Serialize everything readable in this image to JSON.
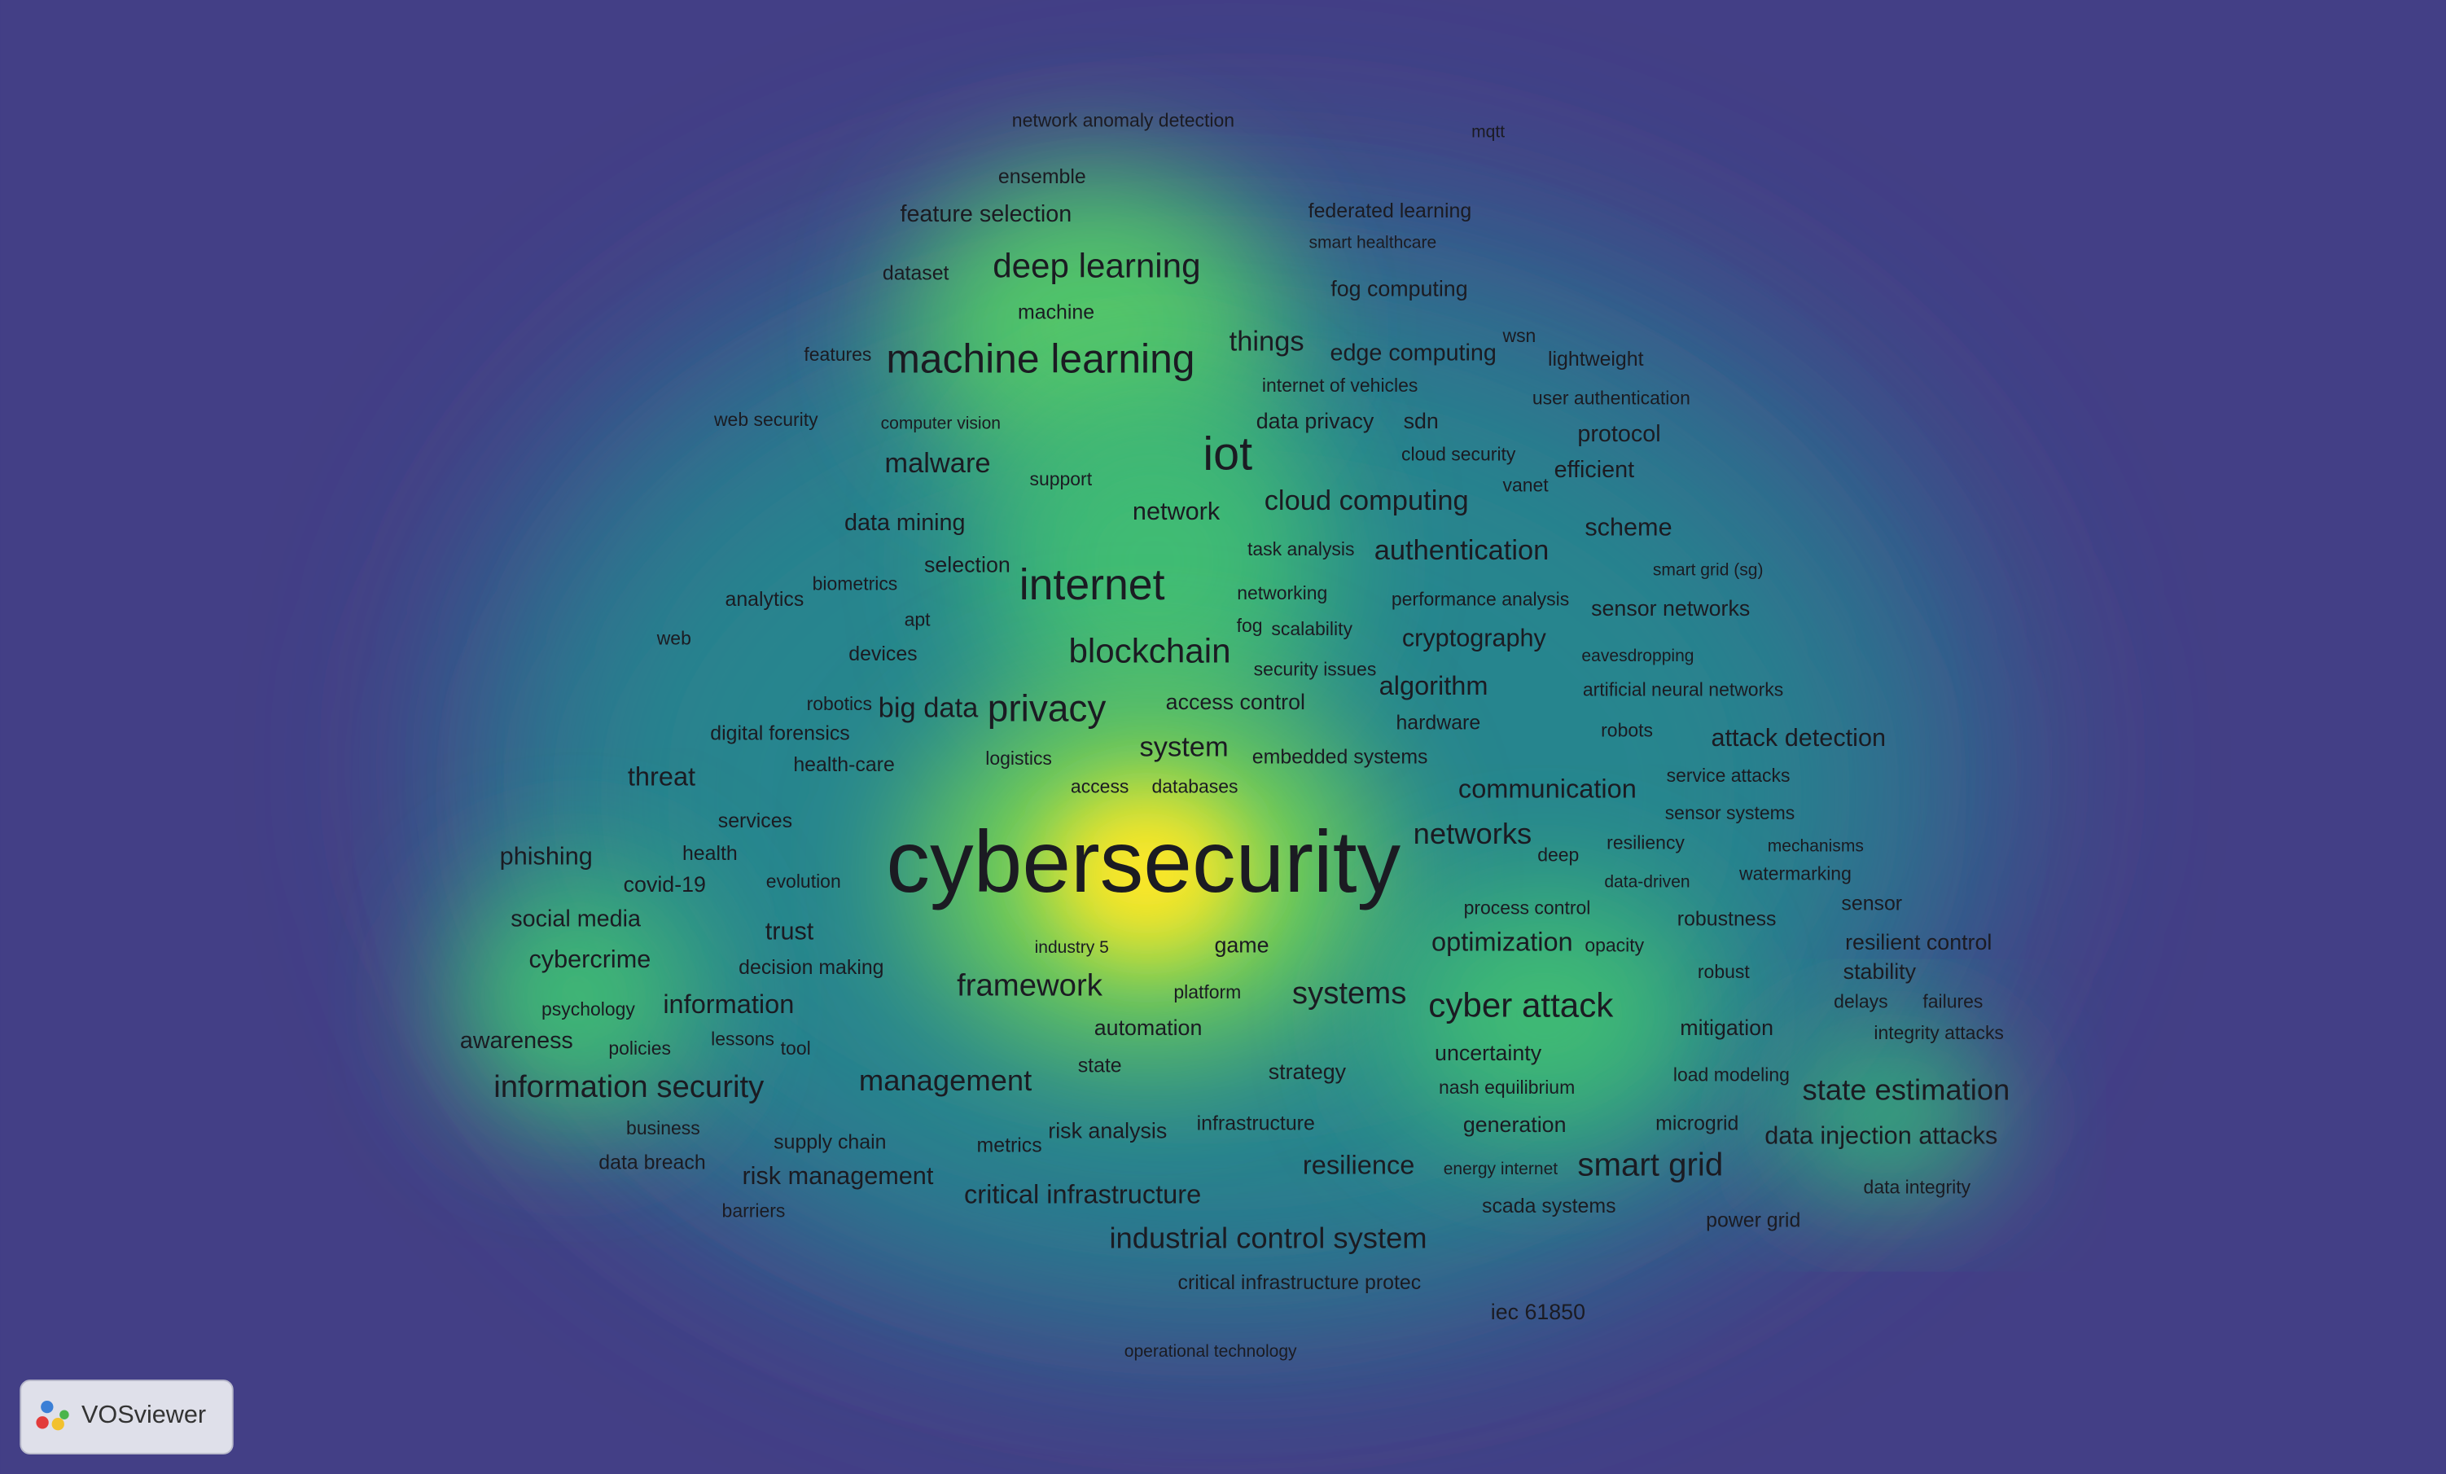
{
  "terms": [
    "network anomaly detection",
    "mqtt",
    "ensemble",
    "feature selection",
    "federated learning",
    "smart healthcare",
    "dataset",
    "deep learning",
    "fog computing",
    "machine",
    "things",
    "edge computing",
    "wsn",
    "lightweight",
    "features",
    "machine learning",
    "internet of vehicles",
    "user authentication",
    "web security",
    "computer vision",
    "data privacy",
    "sdn",
    "protocol",
    "iot",
    "cloud security",
    "malware",
    "efficient",
    "support",
    "vanet",
    "network",
    "cloud computing",
    "scheme",
    "data mining",
    "task analysis",
    "authentication",
    "smart grid (sg)",
    "selection",
    "internet",
    "biometrics",
    "networking",
    "performance analysis",
    "analytics",
    "sensor networks",
    "apt",
    "fog",
    "scalability",
    "cryptography",
    "web",
    "devices",
    "blockchain",
    "eavesdropping",
    "security issues",
    "algorithm",
    "artificial neural networks",
    "robotics",
    "big data",
    "privacy",
    "access control",
    "hardware",
    "digital forensics",
    "robots",
    "attack detection",
    "system",
    "logistics",
    "embedded systems",
    "health-care",
    "threat",
    "service attacks",
    "access",
    "databases",
    "communication",
    "services",
    "sensor systems",
    "cybersecurity",
    "networks",
    "resiliency",
    "mechanisms",
    "phishing",
    "health",
    "deep",
    "covid-19",
    "evolution",
    "data-driven",
    "watermarking",
    "social media",
    "process control",
    "sensor",
    "robustness",
    "trust",
    "industry 5",
    "game",
    "optimization",
    "opacity",
    "resilient control",
    "cybercrime",
    "decision making",
    "robust",
    "stability",
    "framework",
    "platform",
    "systems",
    "cyber attack",
    "delays",
    "failures",
    "psychology",
    "information",
    "automation",
    "mitigation",
    "integrity attacks",
    "awareness",
    "lessons",
    "policies",
    "tool",
    "uncertainty",
    "state",
    "strategy",
    "load modeling",
    "management",
    "information security",
    "nash equilibrium",
    "state estimation",
    "business",
    "risk analysis",
    "infrastructure",
    "generation",
    "microgrid",
    "data injection attacks",
    "supply chain",
    "metrics",
    "resilience",
    "energy internet",
    "smart grid",
    "data breach",
    "risk management",
    "critical infrastructure",
    "data integrity",
    "scada systems",
    "barriers",
    "power grid",
    "industrial control system",
    "critical infrastructure protec",
    "iec 61850",
    "operational technology"
  ],
  "logo": "VOSviewer"
}
